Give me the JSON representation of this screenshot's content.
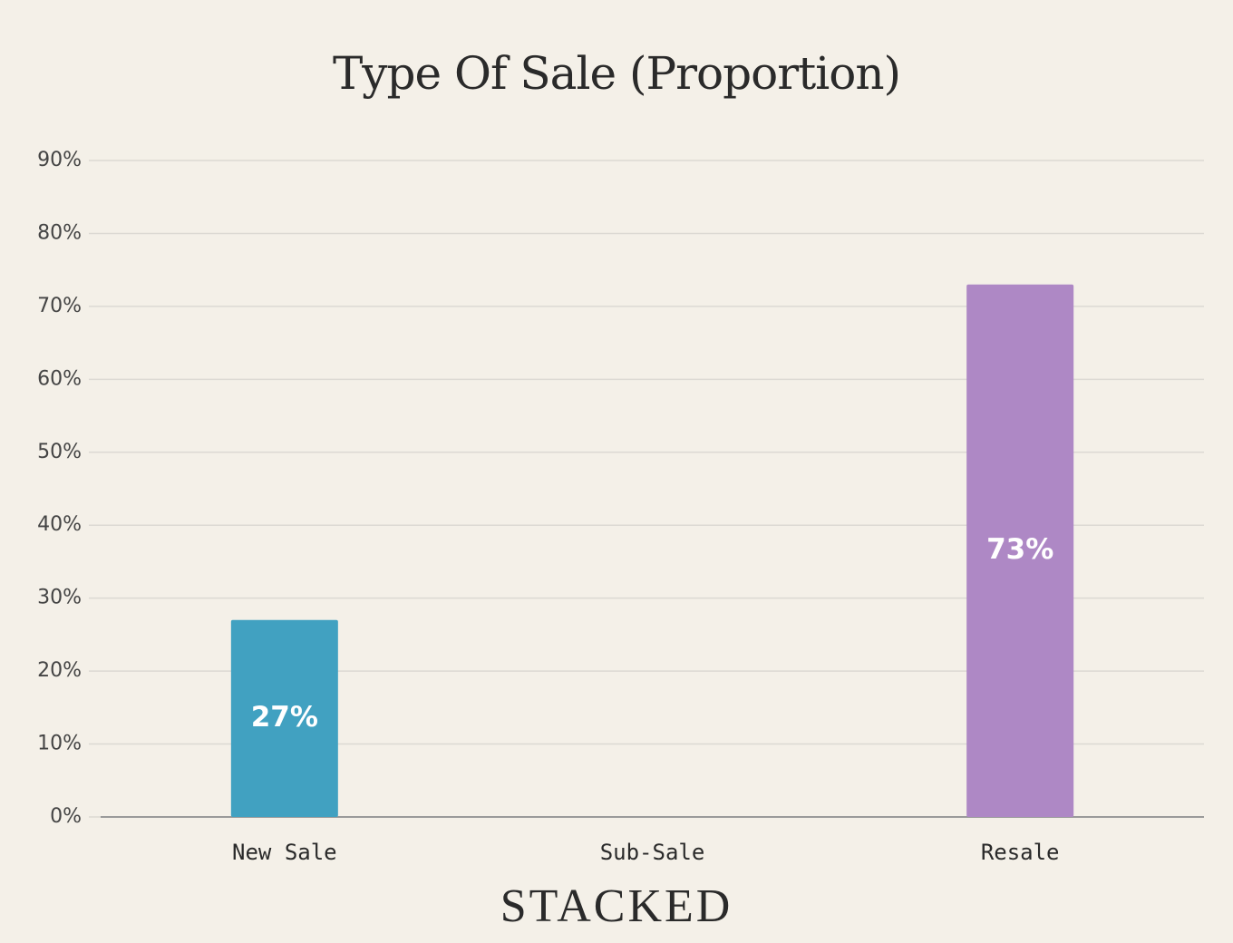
{
  "chart_data": {
    "type": "bar",
    "title": "Type Of Sale (Proportion)",
    "categories": [
      "New Sale",
      "Sub-Sale",
      "Resale"
    ],
    "values": [
      27,
      0,
      73
    ],
    "value_labels": [
      "27%",
      null,
      "73%"
    ],
    "colors": [
      "#41a1c1",
      null,
      "#ae88c5"
    ],
    "ylim": [
      0,
      90
    ],
    "yticks": [
      {
        "value": 0,
        "label": "0%"
      },
      {
        "value": 10,
        "label": "10%"
      },
      {
        "value": 20,
        "label": "20%"
      },
      {
        "value": 30,
        "label": "30%"
      },
      {
        "value": 40,
        "label": "40%"
      },
      {
        "value": 50,
        "label": "50%"
      },
      {
        "value": 60,
        "label": "60%"
      },
      {
        "value": 70,
        "label": "70%"
      },
      {
        "value": 80,
        "label": "80%"
      },
      {
        "value": 90,
        "label": "90%"
      }
    ],
    "grid": true,
    "watermark": "STACKED"
  }
}
